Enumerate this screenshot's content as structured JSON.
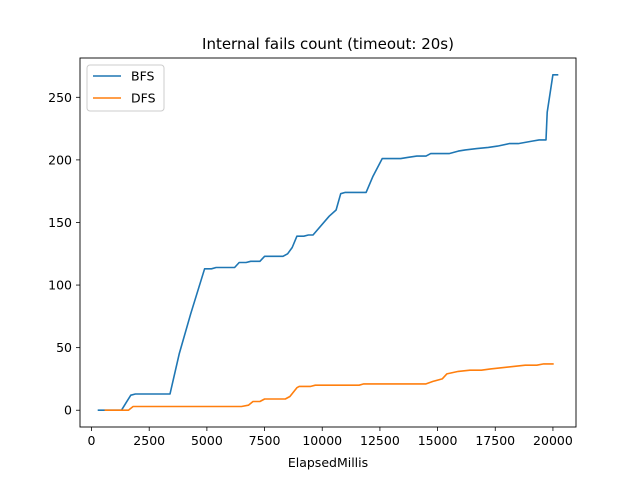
{
  "chart_data": {
    "type": "line",
    "title": "Internal fails count (timeout: 20s)",
    "xlabel": "ElapsedMillis",
    "ylabel": "",
    "xlim": [
      -500,
      21000
    ],
    "ylim": [
      -13.4,
      281.4
    ],
    "xticks": [
      0,
      2500,
      5000,
      7500,
      10000,
      12500,
      15000,
      17500,
      20000
    ],
    "yticks": [
      0,
      50,
      100,
      150,
      200,
      250
    ],
    "grid": false,
    "legend_position": "top-left",
    "series": [
      {
        "name": "BFS",
        "color": "#1f77b4",
        "x": [
          300,
          1300,
          1500,
          1700,
          1900,
          3400,
          3800,
          4300,
          4900,
          5200,
          5400,
          6200,
          6400,
          6700,
          6900,
          7300,
          7500,
          8300,
          8500,
          8700,
          8900,
          9200,
          9400,
          9600,
          10300,
          10600,
          10800,
          11000,
          11900,
          12200,
          12600,
          13400,
          13700,
          14100,
          14500,
          14700,
          15500,
          15900,
          16200,
          16700,
          17200,
          17600,
          18100,
          18500,
          19100,
          19400,
          19700,
          19750,
          20000,
          20200
        ],
        "y": [
          0,
          0,
          6,
          12,
          13,
          13,
          45,
          77,
          113,
          113,
          114,
          114,
          118,
          118,
          119,
          119,
          123,
          123,
          125,
          130,
          139,
          139,
          140,
          140,
          155,
          160,
          173,
          174,
          174,
          187,
          201,
          201,
          202,
          203,
          203,
          205,
          205,
          207,
          208,
          209,
          210,
          211,
          213,
          213,
          215,
          216,
          216,
          238,
          268,
          268
        ]
      },
      {
        "name": "DFS",
        "color": "#ff7f0e",
        "x": [
          600,
          1600,
          1800,
          2000,
          6500,
          6800,
          7000,
          7300,
          7500,
          8400,
          8600,
          8900,
          9000,
          9500,
          9700,
          11600,
          11800,
          14500,
          14800,
          15200,
          15400,
          15900,
          16400,
          16900,
          17300,
          17800,
          18300,
          18800,
          19300,
          19600,
          20000
        ],
        "y": [
          0,
          0,
          3,
          3,
          3,
          4,
          7,
          7,
          9,
          9,
          11,
          18,
          19,
          19,
          20,
          20,
          21,
          21,
          23,
          25,
          29,
          31,
          32,
          32,
          33,
          34,
          35,
          36,
          36,
          37,
          37
        ]
      }
    ]
  }
}
